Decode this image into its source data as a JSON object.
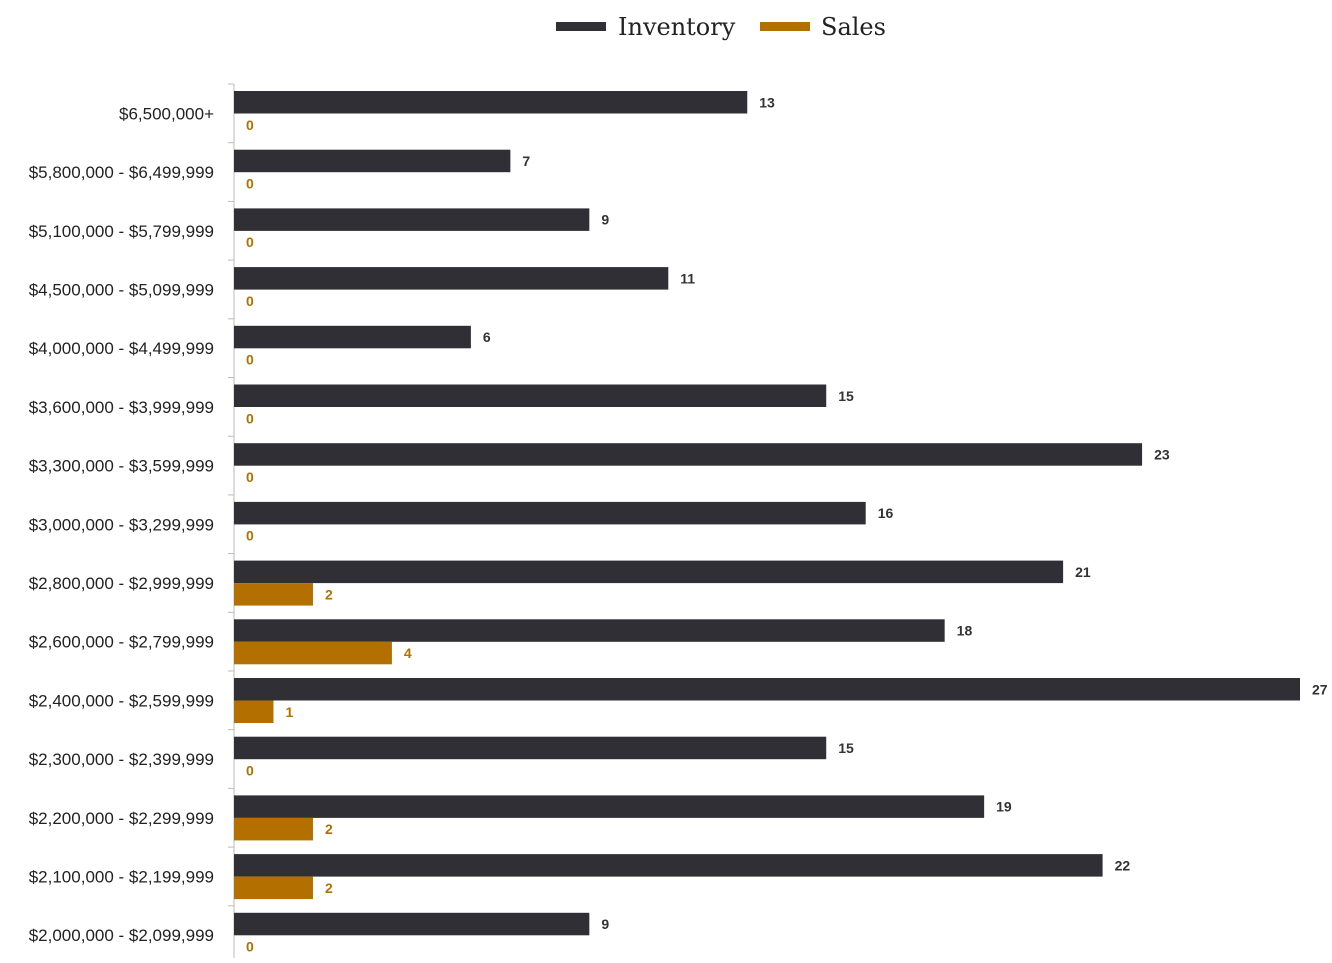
{
  "chart_data": {
    "type": "bar",
    "orientation": "horizontal",
    "title": "",
    "xlabel": "",
    "ylabel": "",
    "xlim": [
      0,
      27
    ],
    "grid": false,
    "legend_position": "top-center",
    "categories": [
      "$6,500,000+",
      "$5,800,000 - $6,499,999",
      "$5,100,000 - $5,799,999",
      "$4,500,000 - $5,099,999",
      "$4,000,000 - $4,499,999",
      "$3,600,000 - $3,999,999",
      "$3,300,000 - $3,599,999",
      "$3,000,000 - $3,299,999",
      "$2,800,000 - $2,999,999",
      "$2,600,000 - $2,799,999",
      "$2,400,000 - $2,599,999",
      "$2,300,000 - $2,399,999",
      "$2,200,000 - $2,299,999",
      "$2,100,000 - $2,199,999",
      "$2,000,000 - $2,099,999"
    ],
    "series": [
      {
        "name": "Inventory",
        "color": "#2f2f35",
        "label_color": "#333333",
        "values": [
          13,
          7,
          9,
          11,
          6,
          15,
          23,
          16,
          21,
          18,
          27,
          15,
          19,
          22,
          9
        ]
      },
      {
        "name": "Sales",
        "color": "#b37000",
        "label_color": "#b37000",
        "values": [
          0,
          0,
          0,
          0,
          0,
          0,
          0,
          0,
          2,
          4,
          1,
          0,
          2,
          2,
          0
        ]
      }
    ]
  }
}
